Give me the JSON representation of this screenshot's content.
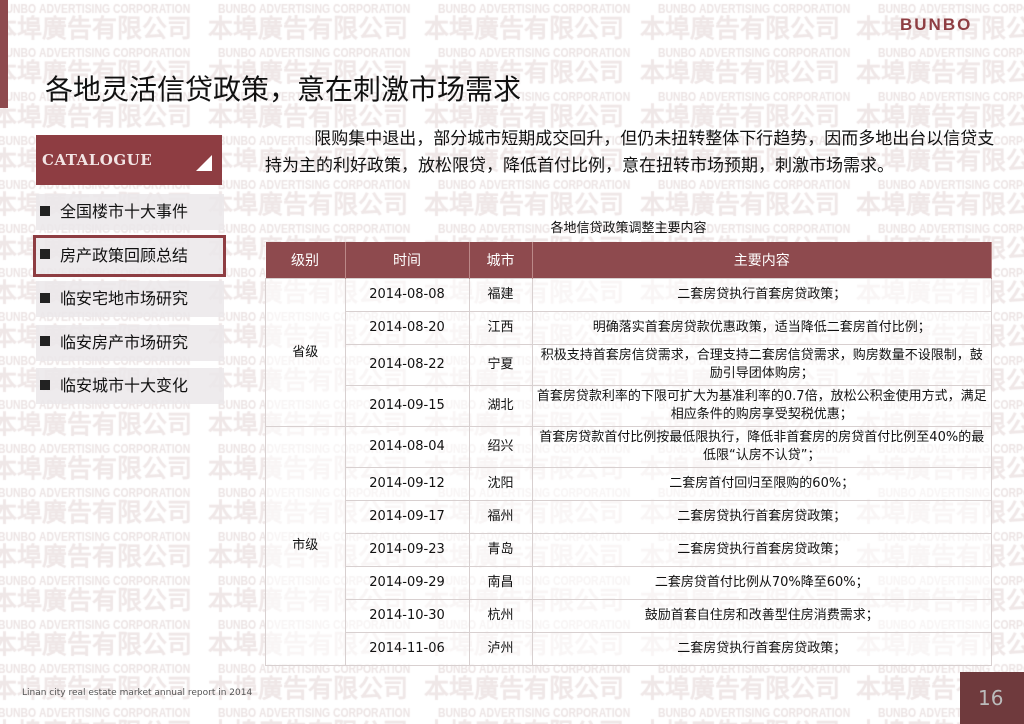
{
  "watermark": {
    "en": "BUNBO ADVERTISING CORPORATION",
    "cn": "本埠廣告有限公司"
  },
  "logo": "BUNBO",
  "title": "各地灵活信贷政策，意在刺激市场需求",
  "catalogue": {
    "heading": "CATALOGUE",
    "items": [
      {
        "label": "全国楼市十大事件",
        "active": false
      },
      {
        "label": "房产政策回顾总结",
        "active": true
      },
      {
        "label": "临安宅地市场研究",
        "active": false
      },
      {
        "label": "临安房产市场研究",
        "active": false
      },
      {
        "label": "临安城市十大变化",
        "active": false
      }
    ]
  },
  "paragraph": "限购集中退出，部分城市短期成交回升，但仍未扭转整体下行趋势，因而多地出台以信贷支持为主的利好政策，放松限贷，降低首付比例，意在扭转市场预期，刺激市场需求。",
  "table": {
    "title": "各地信贷政策调整主要内容",
    "headers": [
      "级别",
      "时间",
      "城市",
      "主要内容"
    ],
    "groups": [
      {
        "level": "省级",
        "rows": [
          {
            "date": "2014-08-08",
            "city": "福建",
            "content": "二套房贷执行首套房贷政策；"
          },
          {
            "date": "2014-08-20",
            "city": "江西",
            "content": "明确落实首套房贷款优惠政策，适当降低二套房首付比例；"
          },
          {
            "date": "2014-08-22",
            "city": "宁夏",
            "content": "积极支持首套房信贷需求，合理支持二套房信贷需求，购房数量不设限制，鼓励引导团体购房；"
          },
          {
            "date": "2014-09-15",
            "city": "湖北",
            "content": "首套房贷款利率的下限可扩大为基准利率的0.7倍，放松公积金使用方式，满足相应条件的购房享受契税优惠；"
          }
        ]
      },
      {
        "level": "市级",
        "rows": [
          {
            "date": "2014-08-04",
            "city": "绍兴",
            "content": "首套房贷款首付比例按最低限执行，降低非首套房的房贷首付比例至40%的最低限“认房不认贷”；"
          },
          {
            "date": "2014-09-12",
            "city": "沈阳",
            "content": "二套房首付回归至限购的60%；"
          },
          {
            "date": "2014-09-17",
            "city": "福州",
            "content": "二套房贷执行首套房贷政策；"
          },
          {
            "date": "2014-09-23",
            "city": "青岛",
            "content": "二套房贷执行首套房贷政策；"
          },
          {
            "date": "2014-09-29",
            "city": "南昌",
            "content": "二套房贷首付比例从70%降至60%；"
          },
          {
            "date": "2014-10-30",
            "city": "杭州",
            "content": "鼓励首套自住房和改善型住房消费需求；"
          },
          {
            "date": "2014-11-06",
            "city": "泸州",
            "content": "二套房贷执行首套房贷政策；"
          }
        ]
      }
    ]
  },
  "footer": "Linan city real estate market  annual report  in 2014",
  "page_number": "16",
  "colors": {
    "brand": "#8e3d42",
    "header": "#8e4a4e"
  }
}
